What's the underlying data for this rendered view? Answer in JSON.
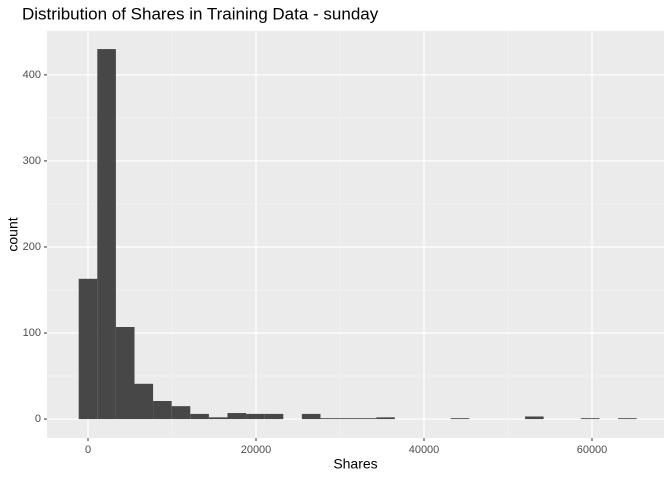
{
  "chart_data": {
    "type": "histogram",
    "title": "Distribution of Shares in Training Data -  sunday",
    "x_label": "Shares",
    "y_label": "count",
    "bins": [
      -1107,
      1107,
      3321,
      5535,
      7749,
      9963,
      12177,
      14391,
      16605,
      18819,
      21033,
      23247,
      25461,
      27675,
      29889,
      32103,
      34317,
      36531,
      38745,
      40959,
      43173,
      45387,
      47601,
      49815,
      52029,
      54243,
      56457,
      58671,
      60885,
      63099,
      65313
    ],
    "values": [
      163,
      430,
      107,
      41,
      21,
      15,
      6,
      2,
      7,
      6,
      6,
      0,
      6,
      1,
      1,
      1,
      2,
      0,
      0,
      0,
      1,
      0,
      0,
      0,
      3,
      0,
      0,
      1,
      0,
      1
    ],
    "color": "#474747",
    "xlim": [
      -4881,
      68571
    ],
    "ylim": [
      -22,
      451
    ],
    "xticks": [
      0,
      20000,
      40000,
      60000
    ],
    "yticks": [
      0,
      100,
      200,
      300,
      400
    ],
    "grid": true
  }
}
